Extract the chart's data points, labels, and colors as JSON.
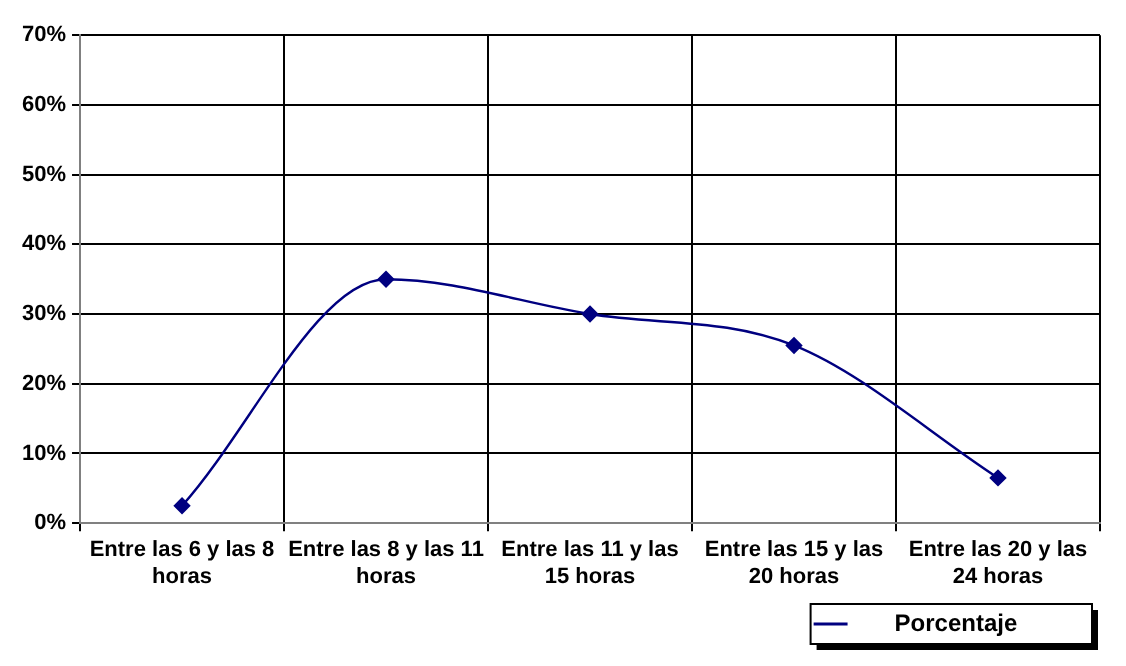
{
  "chart_data": {
    "type": "line",
    "categories": [
      "Entre las 6 y las 8 horas",
      "Entre las 8 y las 11 horas",
      "Entre las 11 y las 15 horas",
      "Entre las 15 y las 20 horas",
      "Entre las 20 y las 24 horas"
    ],
    "series": [
      {
        "name": "Porcentaje",
        "color": "#000080",
        "values": [
          2.5,
          35,
          30,
          25.5,
          6.5
        ]
      }
    ],
    "ylim": [
      0,
      70
    ],
    "yticks": [
      {
        "value": 0,
        "label": "0%"
      },
      {
        "value": 10,
        "label": "10%"
      },
      {
        "value": 20,
        "label": "20%"
      },
      {
        "value": 30,
        "label": "30%"
      },
      {
        "value": 40,
        "label": "40%"
      },
      {
        "value": 50,
        "label": "50%"
      },
      {
        "value": 60,
        "label": "60%"
      },
      {
        "value": 70,
        "label": "70%"
      }
    ],
    "grid": true,
    "legend": "bottom right",
    "marker": "diamond",
    "line_style": "solid"
  }
}
